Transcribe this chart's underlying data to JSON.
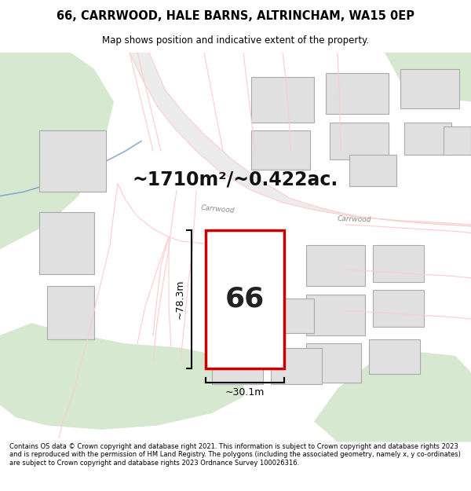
{
  "title_line1": "66, CARRWOOD, HALE BARNS, ALTRINCHAM, WA15 0EP",
  "title_line2": "Map shows position and indicative extent of the property.",
  "area_text": "~1710m²/~0.422ac.",
  "label_number": "66",
  "dim_width": "~30.1m",
  "dim_height": "~78.3m",
  "footer_text": "Contains OS data © Crown copyright and database right 2021. This information is subject to Crown copyright and database rights 2023 and is reproduced with the permission of HM Land Registry. The polygons (including the associated geometry, namely x, y co-ordinates) are subject to Crown copyright and database rights 2023 Ordnance Survey 100026316.",
  "bg_color": "#ffffff",
  "map_bg": "#f5f5f5",
  "plot_fill": "#ffffff",
  "plot_edge": "#cc0000",
  "neighbor_fill": "#e0e0e0",
  "neighbor_edge": "#aaaaaa",
  "green_fill": "#d6e8d0",
  "road_fill": "#e8e8e8",
  "road_line_color": "#ffcccc",
  "road_label_color": "#888888",
  "blue_line": "#7799cc",
  "road_label1": "Carrwood",
  "road_label2": "Carrwood"
}
